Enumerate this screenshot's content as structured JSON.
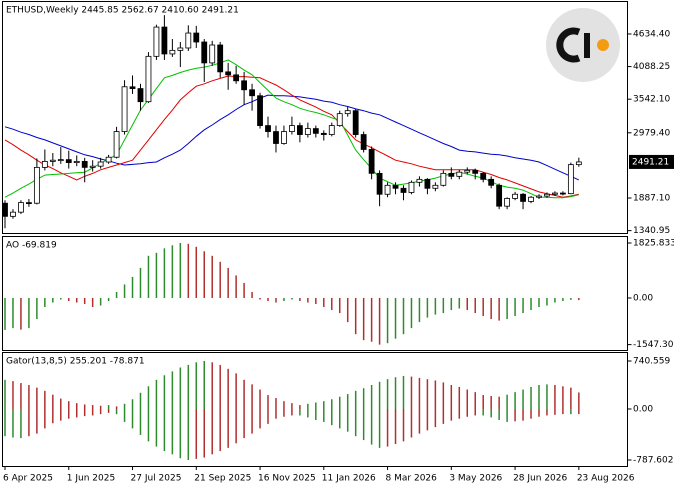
{
  "chart_data": [
    {
      "type": "candlestick",
      "title": "ETHUSD,Weekly  2445.85 2562.67 2410.60 2491.21",
      "categories": [
        "6 Apr 2025",
        null,
        null,
        null,
        null,
        null,
        null,
        null,
        "1 Jun 2025",
        null,
        null,
        null,
        null,
        null,
        null,
        null,
        "27 Jul 2025",
        null,
        null,
        null,
        null,
        null,
        null,
        null,
        "21 Sep 2025",
        null,
        null,
        null,
        null,
        null,
        null,
        null,
        "16 Nov 2025",
        null,
        null,
        null,
        null,
        null,
        null,
        null,
        "11 Jan 2026",
        null,
        null,
        null,
        null,
        null,
        null,
        null,
        "8 Mar 2026",
        null,
        null,
        null,
        null,
        null,
        null,
        null,
        "3 May 2026",
        null,
        null,
        null,
        null,
        null,
        null,
        null,
        "28 Jun 2026",
        null,
        null,
        null,
        null,
        null,
        null,
        null,
        "23 Aug 2026"
      ],
      "open": [
        1800,
        1580,
        1650,
        1810,
        1800,
        2400,
        2500,
        2520,
        2530,
        2480,
        2500,
        2400,
        2420,
        2490,
        2570,
        3000,
        3750,
        3720,
        3500,
        4260,
        4750,
        4300,
        4360,
        4400,
        4650,
        4500,
        4150,
        4450,
        4000,
        3950,
        3850,
        3700,
        3600,
        3100,
        3000,
        2800,
        3000,
        3100,
        2950,
        3050,
        2970,
        2950,
        3100,
        3300,
        3350,
        2950,
        2700,
        2300,
        1950,
        2100,
        2050,
        1980,
        2150,
        2200,
        2050,
        2100,
        2300,
        2250,
        2320,
        2350,
        2300,
        2200,
        2100,
        1750,
        1880,
        1950,
        1830,
        1900,
        1920,
        1950,
        1970,
        1960,
        2445.85
      ],
      "high": [
        1850,
        1700,
        1850,
        1870,
        2550,
        2700,
        2640,
        2740,
        2680,
        2600,
        2560,
        2520,
        2560,
        2610,
        3080,
        3860,
        3940,
        3800,
        4330,
        4790,
        4950,
        4550,
        4500,
        4780,
        4770,
        4550,
        4520,
        4500,
        4150,
        4100,
        4000,
        3800,
        3650,
        3250,
        3100,
        3100,
        3250,
        3150,
        3150,
        3100,
        3020,
        3150,
        3350,
        3420,
        3380,
        3000,
        2750,
        2350,
        2150,
        2150,
        2100,
        2180,
        2250,
        2220,
        2150,
        2350,
        2400,
        2360,
        2400,
        2380,
        2320,
        2250,
        2130,
        1900,
        1990,
        1970,
        1920,
        1950,
        1980,
        2000,
        2000,
        2480,
        2562.67
      ],
      "low": [
        1380,
        1540,
        1620,
        1740,
        1780,
        2350,
        2420,
        2460,
        2380,
        2420,
        2150,
        2330,
        2380,
        2460,
        2550,
        2950,
        3630,
        3350,
        3480,
        4200,
        4200,
        4250,
        4080,
        4350,
        4400,
        3830,
        4100,
        3900,
        3700,
        3800,
        3450,
        3350,
        3050,
        2900,
        2650,
        2780,
        2950,
        2820,
        2900,
        2900,
        2850,
        2920,
        3080,
        3250,
        2900,
        2650,
        2200,
        1750,
        1900,
        1950,
        1850,
        1950,
        2080,
        1950,
        2000,
        2080,
        2200,
        2200,
        2280,
        2200,
        2150,
        2050,
        1700,
        1700,
        1850,
        1700,
        1800,
        1870,
        1890,
        1920,
        1930,
        1950,
        2410.6
      ],
      "close": [
        1580,
        1650,
        1810,
        1800,
        2400,
        2500,
        2520,
        2530,
        2480,
        2500,
        2400,
        2420,
        2490,
        2570,
        3000,
        3750,
        3720,
        3500,
        4260,
        4750,
        4300,
        4360,
        4400,
        4650,
        4500,
        4150,
        4450,
        4000,
        3950,
        3850,
        3700,
        3600,
        3100,
        3000,
        2800,
        3000,
        3100,
        2950,
        3050,
        2970,
        2950,
        3100,
        3300,
        3350,
        2950,
        2700,
        2300,
        1950,
        2100,
        2050,
        1980,
        2150,
        2200,
        2050,
        2100,
        2300,
        2250,
        2320,
        2350,
        2300,
        2200,
        2100,
        1750,
        1880,
        1950,
        1830,
        1900,
        1920,
        1950,
        1970,
        1960,
        2445.85,
        2491.21
      ],
      "up_color": "#ffffff",
      "down_color": "#000000",
      "series": [
        {
          "color": "#0000cd",
          "values": [
            3080,
            3040,
            2990,
            2950,
            2900,
            2860,
            2810,
            2760,
            2710,
            2660,
            2610,
            2580,
            2540,
            2510,
            2470,
            2440,
            2450,
            2460,
            2480,
            2490,
            2560,
            2620,
            2690,
            2800,
            2920,
            3030,
            3110,
            3200,
            3280,
            3370,
            3450,
            3500,
            3560,
            3610,
            3600,
            3600,
            3590,
            3580,
            3560,
            3540,
            3510,
            3490,
            3450,
            3420,
            3380,
            3350,
            3310,
            3280,
            3220,
            3160,
            3100,
            3040,
            2980,
            2920,
            2860,
            2800,
            2750,
            2690,
            2670,
            2660,
            2640,
            2620,
            2610,
            2590,
            2560,
            2540,
            2520,
            2490,
            2430,
            2370,
            2310,
            2250,
            2190
          ]
        },
        {
          "color": "#e00000",
          "values": [
            2860,
            2780,
            2690,
            2610,
            2520,
            2440,
            2380,
            2310,
            2250,
            2190,
            2250,
            2300,
            2360,
            2400,
            2440,
            2480,
            2520,
            2690,
            2860,
            3030,
            3200,
            3360,
            3530,
            3650,
            3760,
            3800,
            3850,
            3890,
            3930,
            3920,
            3920,
            3910,
            3900,
            3840,
            3780,
            3700,
            3610,
            3530,
            3470,
            3410,
            3340,
            3280,
            3140,
            3000,
            2860,
            2790,
            2730,
            2660,
            2590,
            2520,
            2490,
            2460,
            2420,
            2390,
            2360,
            2360,
            2360,
            2360,
            2360,
            2360,
            2320,
            2280,
            2230,
            2190,
            2140,
            2090,
            2040,
            1990,
            1960,
            1930,
            1900,
            1920,
            1950
          ]
        },
        {
          "color": "#00c000",
          "values": [
            1900,
            1970,
            2050,
            2120,
            2200,
            2270,
            2280,
            2290,
            2300,
            2310,
            2320,
            2390,
            2470,
            2540,
            2610,
            2860,
            3110,
            3360,
            3540,
            3720,
            3900,
            3940,
            3990,
            4030,
            4060,
            4080,
            4110,
            4150,
            4200,
            4120,
            4030,
            3950,
            3820,
            3690,
            3560,
            3500,
            3450,
            3390,
            3350,
            3320,
            3280,
            3230,
            3190,
            2940,
            2690,
            2530,
            2380,
            2220,
            2160,
            2100,
            2120,
            2140,
            2170,
            2190,
            2220,
            2260,
            2290,
            2320,
            2290,
            2250,
            2220,
            2160,
            2100,
            2070,
            2050,
            2020,
            1960,
            1900,
            1900,
            1890,
            1890,
            1910,
            1940
          ]
        }
      ],
      "ylim": [
        1301,
        5170
      ],
      "yticks": [
        {
          "value": 4634.4,
          "label": "4634.40"
        },
        {
          "value": 4088.25,
          "label": "4088.25"
        },
        {
          "value": 3542.1,
          "label": "3542.10"
        },
        {
          "value": 2979.4,
          "label": "2979.40"
        },
        {
          "value": 1887.1,
          "label": "1887.10"
        },
        {
          "value": 1340.95,
          "label": "1340.95"
        }
      ],
      "price_label": "2491.21"
    },
    {
      "type": "bar",
      "title": "AO -69.819",
      "values": [
        -1060,
        -1000,
        -1050,
        -1000,
        -700,
        -300,
        -150,
        -50,
        -100,
        -150,
        -200,
        -300,
        -250,
        -100,
        200,
        450,
        700,
        1000,
        1400,
        1500,
        1650,
        1750,
        1825.833,
        1800,
        1700,
        1550,
        1400,
        1200,
        1000,
        750,
        500,
        200,
        -50,
        -100,
        -150,
        -100,
        -50,
        -100,
        -150,
        -200,
        -300,
        -400,
        -500,
        -800,
        -1200,
        -1400,
        -1450,
        -1547.301,
        -1500,
        -1350,
        -1200,
        -1000,
        -800,
        -650,
        -550,
        -500,
        -400,
        -350,
        -400,
        -500,
        -600,
        -700,
        -750,
        -700,
        -600,
        -500,
        -400,
        -300,
        -250,
        -150,
        -100,
        -60,
        -69.819
      ],
      "up_color": "#2e8b2e",
      "down_color": "#b03030",
      "ylim": [
        -1726,
        2025
      ],
      "yticks": [
        1825.833,
        {
          "value": 0,
          "label": "0.00"
        },
        -1547.301
      ]
    },
    {
      "type": "bar",
      "title": "Gator(13,8,5) 255.201 -78.871",
      "series": [
        {
          "values": [
            450,
            430,
            400,
            370,
            330,
            280,
            220,
            160,
            120,
            90,
            70,
            60,
            50,
            60,
            40,
            80,
            150,
            250,
            350,
            450,
            520,
            580,
            640,
            680,
            720,
            740.559,
            720,
            680,
            620,
            550,
            450,
            380,
            300,
            215,
            170,
            120,
            90,
            60,
            80,
            100,
            120,
            150,
            190,
            230,
            280,
            320,
            370,
            420,
            460,
            490,
            510,
            500,
            480,
            460,
            440,
            410,
            370,
            340,
            300,
            260,
            215,
            200,
            190,
            220,
            260,
            300,
            340,
            370,
            380,
            370,
            350,
            330,
            255.201
          ]
        },
        {
          "values": [
            -420,
            -440,
            -450,
            -420,
            -380,
            -300,
            -220,
            -180,
            -150,
            -130,
            -110,
            -100,
            -80,
            -60,
            -80,
            -200,
            -300,
            -400,
            -500,
            -580,
            -650,
            -700,
            -760,
            -787.602,
            -770,
            -750,
            -700,
            -650,
            -600,
            -530,
            -450,
            -380,
            -300,
            -230,
            -150,
            -120,
            -100,
            -100,
            -130,
            -170,
            -200,
            -250,
            -300,
            -350,
            -420,
            -480,
            -550,
            -600,
            -580,
            -540,
            -500,
            -440,
            -380,
            -330,
            -280,
            -230,
            -180,
            -150,
            -120,
            -100,
            -100,
            -130,
            -170,
            -200,
            -190,
            -180,
            -150,
            -120,
            -100,
            -90,
            -80,
            -80,
            -78.871
          ]
        }
      ],
      "up_color": "#2e8b2e",
      "down_color": "#b03030",
      "ylim": [
        -880,
        864
      ],
      "yticks": [
        740.559,
        {
          "value": 0,
          "label": "0.00"
        },
        -787.602
      ]
    }
  ]
}
